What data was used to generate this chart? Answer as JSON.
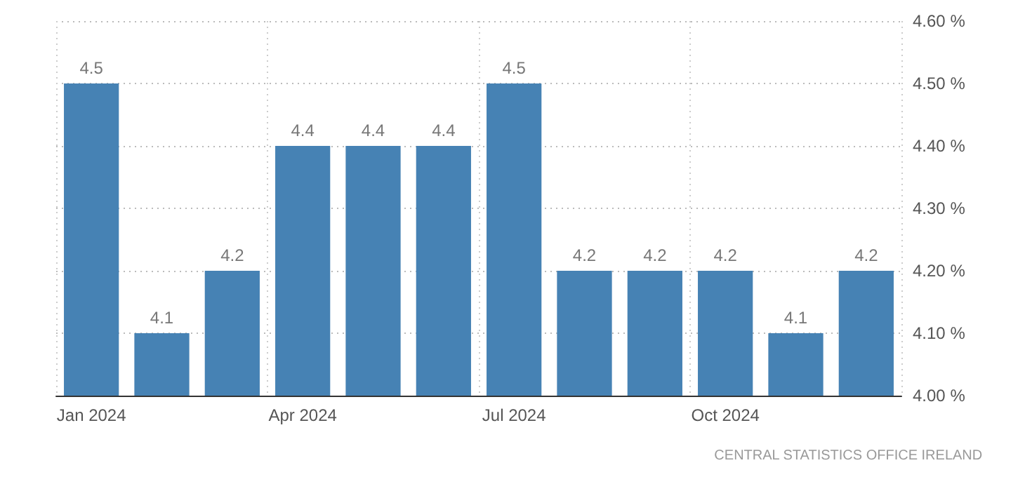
{
  "chart_data": {
    "type": "bar",
    "categories": [
      "Jan 2024",
      null,
      null,
      "Apr 2024",
      null,
      null,
      "Jul 2024",
      null,
      null,
      "Oct 2024",
      null,
      null
    ],
    "values": [
      4.5,
      4.1,
      4.2,
      4.4,
      4.4,
      4.4,
      4.5,
      4.2,
      4.2,
      4.2,
      4.1,
      4.2
    ],
    "color": "#4682b4",
    "ylim": [
      4.0,
      4.6
    ],
    "yticks": [
      {
        "value": 4.0,
        "label": "4.00 %"
      },
      {
        "value": 4.1,
        "label": "4.10 %"
      },
      {
        "value": 4.2,
        "label": "4.20 %"
      },
      {
        "value": 4.3,
        "label": "4.30 %"
      },
      {
        "value": 4.4,
        "label": "4.40 %"
      },
      {
        "value": 4.5,
        "label": "4.50 %"
      },
      {
        "value": 4.6,
        "label": "4.60 %"
      }
    ],
    "data_labels": true,
    "grid": true,
    "annotations": [
      "CENTRAL STATISTICS OFFICE IRELAND"
    ]
  }
}
